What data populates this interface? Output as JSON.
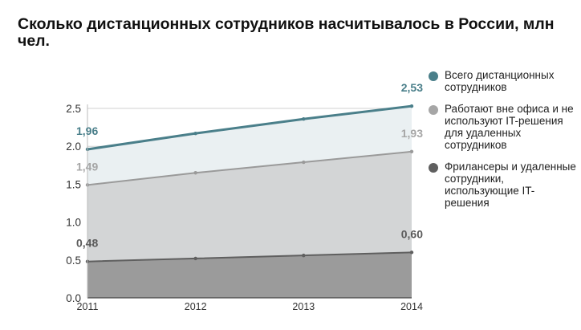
{
  "title": "Сколько дистанционных сотрудников насчитывалось в России, млн чел.",
  "chart_data": {
    "type": "area",
    "x": [
      "2011",
      "2012",
      "2013",
      "2014"
    ],
    "ylim": [
      0,
      2.5
    ],
    "yticks": [
      "0.0",
      "0.5",
      "1.0",
      "1.5",
      "2.0",
      "2.5"
    ],
    "grid": true,
    "legend_position": "right",
    "series": [
      {
        "name": "Всего дистанционных сотрудников",
        "values": [
          1.96,
          2.17,
          2.36,
          2.53
        ],
        "color": "#4a7f8a",
        "fill": "#eaf0f2",
        "start_label": "1,96",
        "end_label": "2,53"
      },
      {
        "name": "Работают вне офиса и не используют IT-решения для удаленных сотрудников",
        "values": [
          1.49,
          1.65,
          1.79,
          1.93
        ],
        "color": "#9a9a9a",
        "fill": "#d3d5d6",
        "start_label": "1,49",
        "end_label": "1,93"
      },
      {
        "name": "Фрилансеры и удаленные сотрудники, использующие IT-решения",
        "values": [
          0.48,
          0.52,
          0.56,
          0.6
        ],
        "color": "#5f5f5f",
        "fill": "#9b9b9b",
        "start_label": "0,48",
        "end_label": "0,60"
      }
    ]
  }
}
